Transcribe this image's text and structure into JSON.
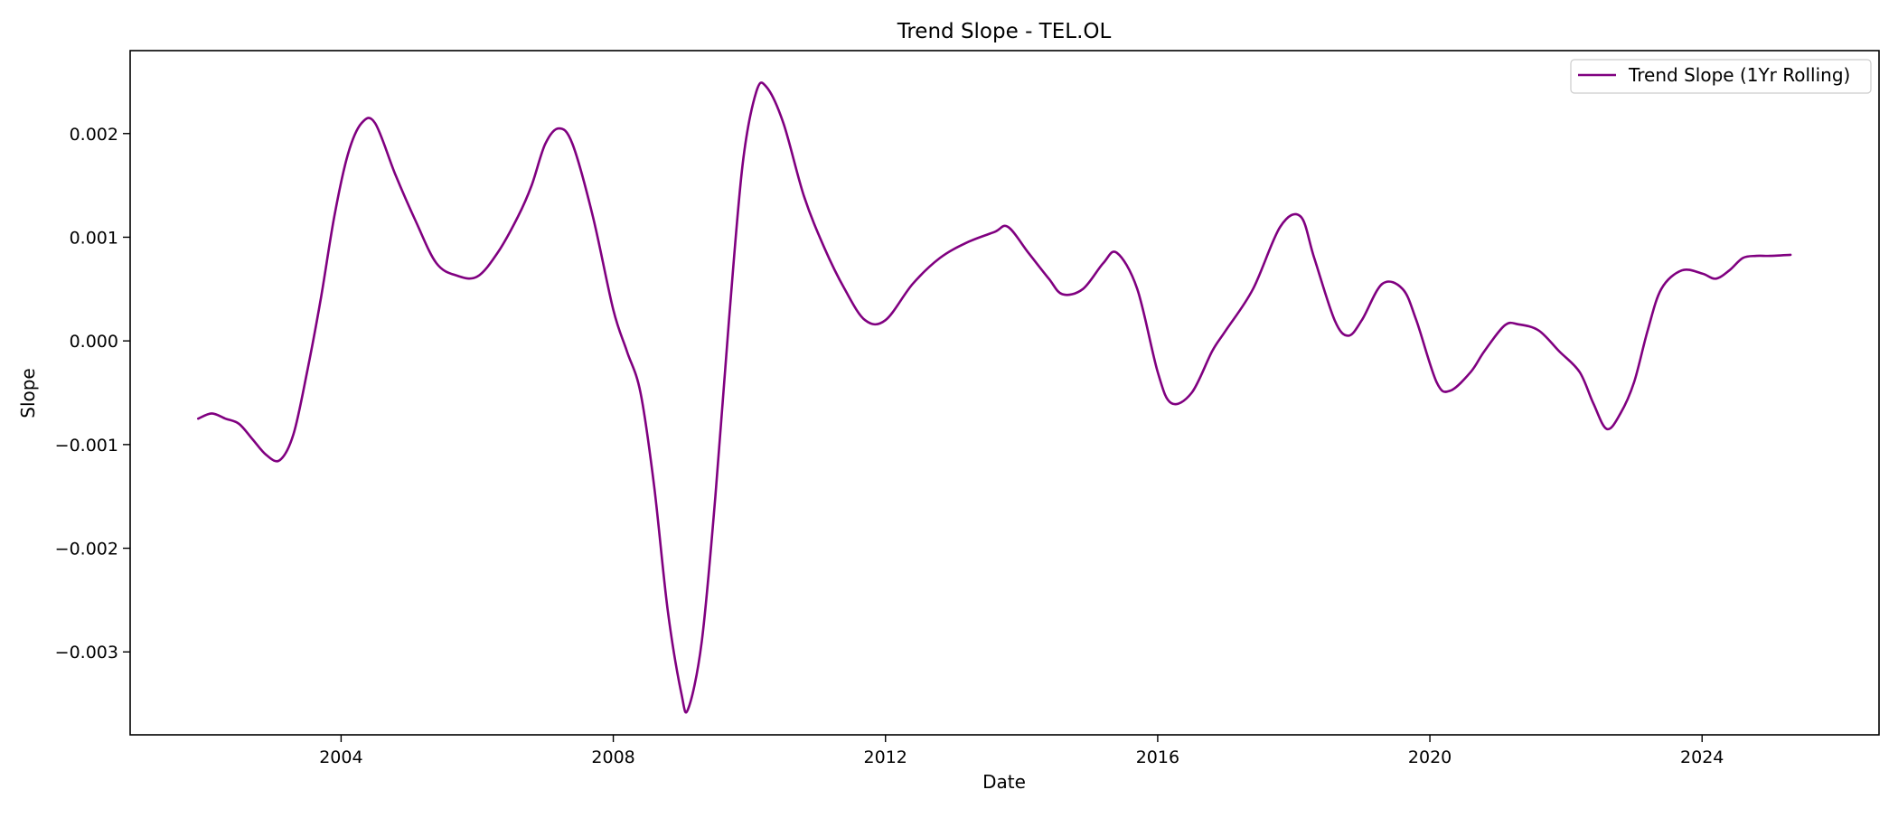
{
  "chart_data": {
    "type": "line",
    "title": "Trend Slope - TEL.OL",
    "xlabel": "Date",
    "ylabel": "Slope",
    "xlim": [
      2000.9,
      2026.6
    ],
    "ylim": [
      -0.0038,
      0.0028
    ],
    "x_ticks": [
      2004,
      2008,
      2012,
      2016,
      2020,
      2024
    ],
    "x_tick_labels": [
      "2004",
      "2008",
      "2012",
      "2016",
      "2020",
      "2024"
    ],
    "y_ticks": [
      -0.003,
      -0.002,
      -0.001,
      0.0,
      0.001,
      0.002
    ],
    "y_tick_labels": [
      "−0.003",
      "−0.002",
      "−0.001",
      "0.000",
      "0.001",
      "0.002"
    ],
    "grid": false,
    "legend_position": "top-right",
    "series": [
      {
        "name": "Trend Slope (1Yr Rolling)",
        "color": "#800080",
        "x": [
          2001.9,
          2002.1,
          2002.3,
          2002.5,
          2002.7,
          2002.9,
          2003.1,
          2003.3,
          2003.5,
          2003.7,
          2003.9,
          2004.1,
          2004.3,
          2004.5,
          2004.8,
          2005.1,
          2005.4,
          2005.7,
          2006.0,
          2006.3,
          2006.6,
          2006.8,
          2007.0,
          2007.2,
          2007.4,
          2007.7,
          2008.0,
          2008.2,
          2008.4,
          2008.6,
          2008.8,
          2009.0,
          2009.1,
          2009.3,
          2009.5,
          2009.7,
          2009.9,
          2010.1,
          2010.25,
          2010.5,
          2010.8,
          2011.1,
          2011.4,
          2011.7,
          2012.0,
          2012.4,
          2012.8,
          2013.2,
          2013.6,
          2013.8,
          2014.1,
          2014.4,
          2014.6,
          2014.9,
          2015.2,
          2015.4,
          2015.7,
          2016.0,
          2016.2,
          2016.5,
          2016.8,
          2017.0,
          2017.4,
          2017.8,
          2018.1,
          2018.3,
          2018.6,
          2018.8,
          2019.0,
          2019.3,
          2019.6,
          2019.8,
          2020.1,
          2020.3,
          2020.6,
          2020.8,
          2021.1,
          2021.3,
          2021.6,
          2021.9,
          2022.2,
          2022.4,
          2022.6,
          2022.8,
          2023.0,
          2023.2,
          2023.4,
          2023.7,
          2024.0,
          2024.2,
          2024.4,
          2024.6,
          2024.8,
          2025.0,
          2025.3
        ],
        "values": [
          -0.00075,
          -0.0007,
          -0.00075,
          -0.0008,
          -0.00095,
          -0.0011,
          -0.00115,
          -0.0009,
          -0.0003,
          0.0004,
          0.0012,
          0.0018,
          0.0021,
          0.0021,
          0.0016,
          0.00115,
          0.00075,
          0.00063,
          0.00062,
          0.00085,
          0.0012,
          0.0015,
          0.0019,
          0.00205,
          0.0019,
          0.0012,
          0.0003,
          -0.0001,
          -0.0005,
          -0.0014,
          -0.0026,
          -0.0034,
          -0.00355,
          -0.0029,
          -0.0015,
          0.0002,
          0.0017,
          0.0024,
          0.00245,
          0.0021,
          0.0014,
          0.0009,
          0.0005,
          0.0002,
          0.0002,
          0.00055,
          0.0008,
          0.00095,
          0.00105,
          0.0011,
          0.00085,
          0.0006,
          0.00045,
          0.0005,
          0.00075,
          0.00085,
          0.0005,
          -0.0003,
          -0.0006,
          -0.0005,
          -0.0001,
          0.0001,
          0.0005,
          0.0011,
          0.0012,
          0.0008,
          0.0002,
          5e-05,
          0.0002,
          0.00055,
          0.0005,
          0.0002,
          -0.0004,
          -0.00048,
          -0.0003,
          -0.0001,
          0.00015,
          0.00016,
          0.0001,
          -0.0001,
          -0.0003,
          -0.0006,
          -0.00085,
          -0.0007,
          -0.0004,
          0.0001,
          0.0005,
          0.00068,
          0.00065,
          0.0006,
          0.00068,
          0.0008,
          0.00082,
          0.00082,
          0.00083
        ]
      }
    ]
  }
}
